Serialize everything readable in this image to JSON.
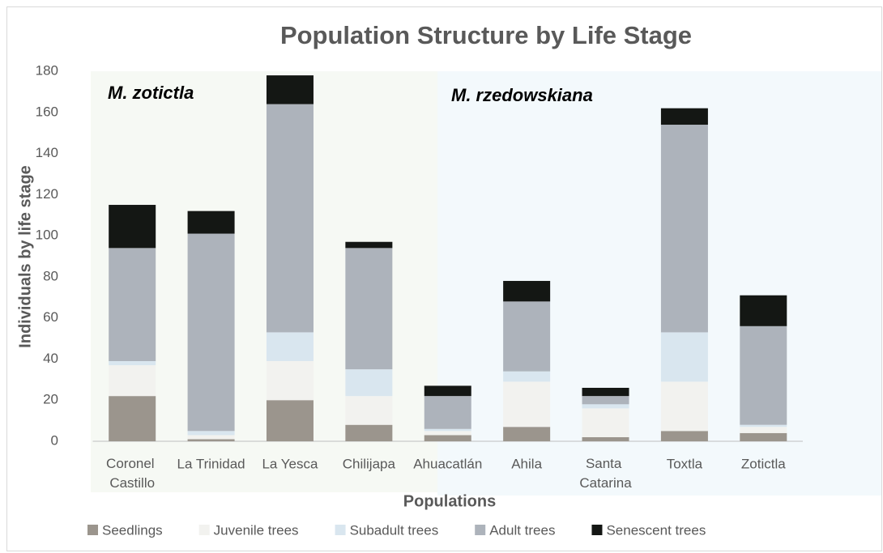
{
  "chart_data": {
    "type": "stacked_bar",
    "title": "Population Structure by Life Stage",
    "xlabel": "Populations",
    "ylabel": "Individuals by life stage",
    "annotations": [
      "M. zotictla",
      "M. rzedowskiana"
    ],
    "categories": [
      "Coronel Castillo",
      "La Trinidad",
      "La Yesca",
      "Chilijapa",
      "Ahuacatlán",
      "Ahila",
      "Santa Catarina",
      "Toxtla",
      "Zotictla"
    ],
    "series": [
      {
        "name": "Seedlings",
        "color": "#9b958d",
        "values": [
          22,
          1,
          20,
          8,
          3,
          7,
          2,
          5,
          4
        ]
      },
      {
        "name": "Juvenile trees",
        "color": "#f2f2ef",
        "values": [
          15,
          2,
          19,
          14,
          2,
          22,
          14,
          24,
          3
        ]
      },
      {
        "name": "Subadult trees",
        "color": "#d9e6ef",
        "values": [
          2,
          2,
          14,
          13,
          1,
          5,
          2,
          24,
          1
        ]
      },
      {
        "name": "Adult trees",
        "color": "#adb3bb",
        "values": [
          55,
          96,
          111,
          59,
          16,
          34,
          4,
          101,
          48
        ]
      },
      {
        "name": "Senescent trees",
        "color": "#141714",
        "values": [
          21,
          11,
          14,
          3,
          5,
          10,
          4,
          8,
          15
        ]
      }
    ],
    "ylim": [
      0,
      180
    ],
    "yticks": [
      0,
      20,
      40,
      60,
      80,
      100,
      120,
      140,
      160,
      180
    ],
    "grid": false,
    "legend": "bottom"
  }
}
